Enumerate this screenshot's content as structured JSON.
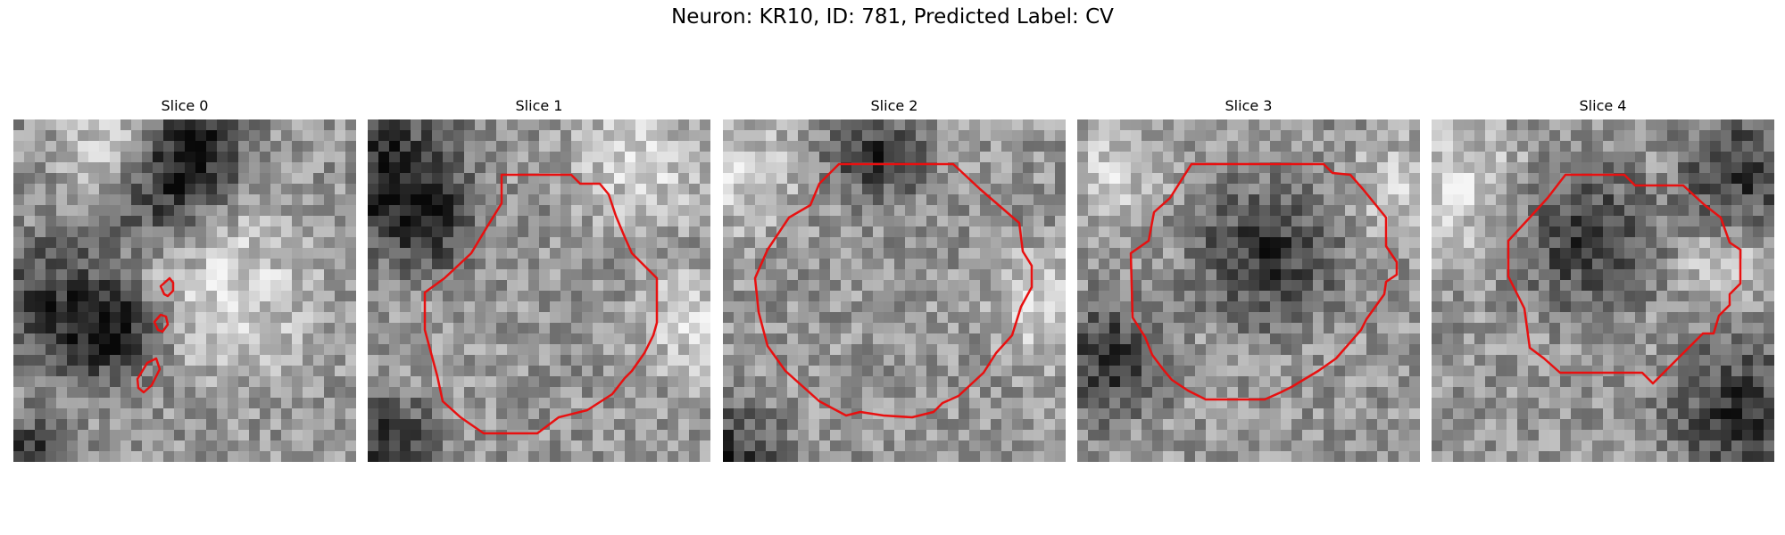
{
  "figure": {
    "title": "Neuron: KR10, ID: 781, Predicted Label: CV"
  },
  "panels": [
    {
      "title": "Slice 0",
      "seed": 11,
      "dark": [
        [
          0.45,
          0.2,
          0.25
        ],
        [
          0.12,
          0.55,
          0.3
        ],
        [
          0.3,
          0.62,
          0.2
        ],
        [
          0.05,
          1.0,
          0.2
        ],
        [
          0.55,
          0.05,
          0.2
        ]
      ],
      "light": [
        [
          0.28,
          0.08,
          0.2
        ],
        [
          0.65,
          0.5,
          0.35
        ]
      ]
    },
    {
      "title": "Slice 1",
      "seed": 23,
      "dark": [
        [
          0.05,
          0.1,
          0.3
        ],
        [
          0.15,
          0.3,
          0.25
        ],
        [
          0.05,
          0.95,
          0.22
        ]
      ],
      "light": [
        [
          0.8,
          0.12,
          0.3
        ],
        [
          0.95,
          0.6,
          0.25
        ]
      ]
    },
    {
      "title": "Slice 2",
      "seed": 37,
      "dark": [
        [
          0.02,
          0.98,
          0.22
        ],
        [
          0.45,
          0.1,
          0.2
        ]
      ],
      "light": [
        [
          0.05,
          0.15,
          0.25
        ],
        [
          0.95,
          0.55,
          0.25
        ]
      ]
    },
    {
      "title": "Slice 3",
      "seed": 41,
      "dark": [
        [
          0.55,
          0.4,
          0.3
        ],
        [
          0.1,
          0.7,
          0.25
        ]
      ],
      "light": [
        [
          0.95,
          0.2,
          0.2
        ],
        [
          0.1,
          0.15,
          0.2
        ]
      ]
    },
    {
      "title": "Slice 4",
      "seed": 53,
      "dark": [
        [
          0.9,
          0.15,
          0.25
        ],
        [
          0.9,
          0.85,
          0.3
        ],
        [
          0.45,
          0.35,
          0.3
        ]
      ],
      "light": [
        [
          0.05,
          0.2,
          0.3
        ],
        [
          0.85,
          0.45,
          0.15
        ]
      ]
    }
  ],
  "contour_color": "#e81010"
}
